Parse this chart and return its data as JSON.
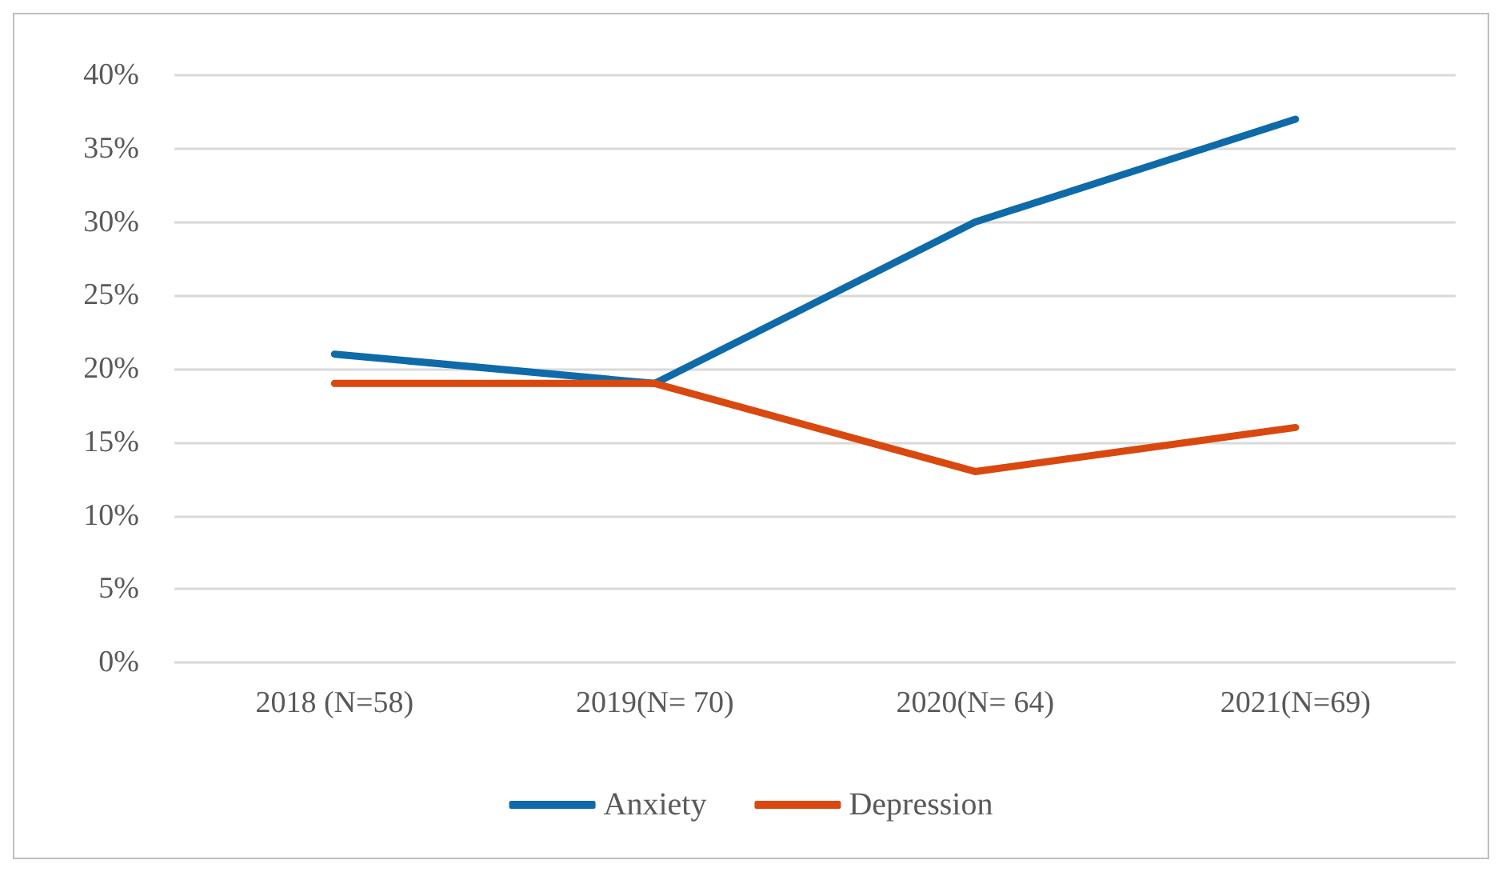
{
  "chart_data": {
    "type": "line",
    "categories": [
      "2018 (N=58)",
      "2019(N= 70)",
      "2020(N= 64)",
      "2021(N=69)"
    ],
    "series": [
      {
        "name": "Anxiety",
        "color": "#0e6aa8",
        "values": [
          21,
          19,
          30,
          37
        ]
      },
      {
        "name": "Depression",
        "color": "#d9480f",
        "values": [
          19,
          19,
          13,
          16
        ]
      }
    ],
    "ylim": [
      0,
      40
    ],
    "yticks": [
      {
        "value": 0,
        "label": "0%"
      },
      {
        "value": 5,
        "label": "5%"
      },
      {
        "value": 10,
        "label": "10%"
      },
      {
        "value": 15,
        "label": "15%"
      },
      {
        "value": 20,
        "label": "20%"
      },
      {
        "value": 25,
        "label": "25%"
      },
      {
        "value": 30,
        "label": "30%"
      },
      {
        "value": 35,
        "label": "35%"
      },
      {
        "value": 40,
        "label": "40%"
      }
    ],
    "grid": "y",
    "legend": "bottom",
    "marker": "none",
    "line_style": "solid"
  }
}
